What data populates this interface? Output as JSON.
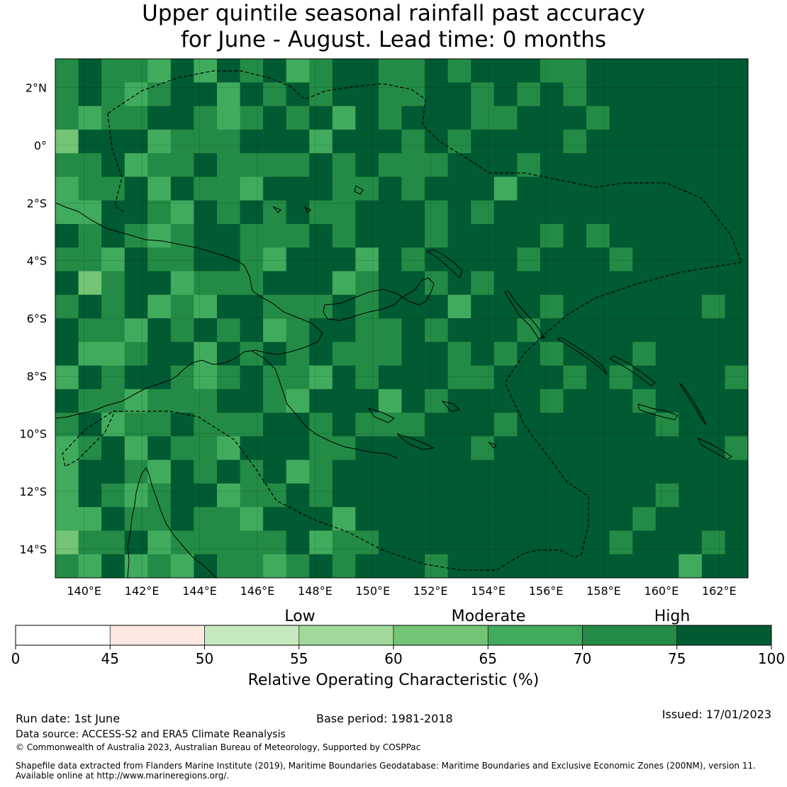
{
  "title": {
    "line1": "Upper quintile seasonal rainfall past accuracy",
    "line2": "for June - August. Lead time: 0 months"
  },
  "map": {
    "lon_range": [
      139,
      163
    ],
    "lat_range": [
      -15,
      3
    ],
    "lat_ticks": [
      {
        "value": 2,
        "label": "2°N"
      },
      {
        "value": 0,
        "label": "0°"
      },
      {
        "value": -2,
        "label": "2°S"
      },
      {
        "value": -4,
        "label": "4°S"
      },
      {
        "value": -6,
        "label": "6°S"
      },
      {
        "value": -8,
        "label": "8°S"
      },
      {
        "value": -10,
        "label": "10°S"
      },
      {
        "value": -12,
        "label": "12°S"
      },
      {
        "value": -14,
        "label": "14°S"
      }
    ],
    "lon_ticks": [
      {
        "value": 140,
        "label": "140°E"
      },
      {
        "value": 142,
        "label": "142°E"
      },
      {
        "value": 144,
        "label": "144°E"
      },
      {
        "value": 146,
        "label": "146°E"
      },
      {
        "value": 148,
        "label": "148°E"
      },
      {
        "value": 150,
        "label": "150°E"
      },
      {
        "value": 152,
        "label": "152°E"
      },
      {
        "value": 154,
        "label": "154°E"
      },
      {
        "value": 156,
        "label": "156°E"
      },
      {
        "value": 158,
        "label": "158°E"
      },
      {
        "value": 160,
        "label": "160°E"
      },
      {
        "value": 162,
        "label": "162°E"
      }
    ]
  },
  "colorbar": {
    "categories": [
      "Low",
      "Moderate",
      "High"
    ],
    "ticks": [
      "0",
      "45",
      "50",
      "55",
      "60",
      "65",
      "70",
      "75",
      "100"
    ],
    "bounds": [
      0,
      45,
      50,
      55,
      60,
      65,
      70,
      75,
      100
    ],
    "colors": [
      "#ffffff",
      "#fde9e1",
      "#c7e9c0",
      "#a1d99b",
      "#74c476",
      "#41ab5d",
      "#238b45",
      "#005a32"
    ],
    "label": "Relative Operating Characteristic (%)"
  },
  "footer": {
    "run_date": "Run date: 1st June",
    "base_period": "Base period: 1981-2018",
    "issued": "Issued: 17/01/2023",
    "data_source": "Data source: ACCESS-S2 and ERA5 Climate Reanalysis",
    "copyright": "© Commonwealth of Australia 2023, Australian Bureau of Meteorology, Supported by COSPPac",
    "shapefile_line1": "Shapefile data extracted from Flanders Marine Institute (2019), Maritime Boundaries Geodatabase: Maritime Boundaries and Exclusive Economic Zones (200NM), version 11.",
    "shapefile_line2": "Available online at http://www.marineregions.org/."
  }
}
